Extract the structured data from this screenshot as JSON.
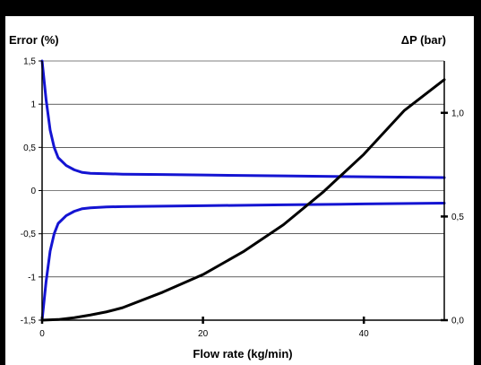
{
  "chart_data": {
    "type": "line",
    "title": "",
    "xlabel": "Flow rate (kg/min)",
    "ylabel_left": "Error (%)",
    "ylabel_right": "ΔP (bar)",
    "xlim": [
      0,
      50
    ],
    "ylim_left": [
      -1.5,
      1.5
    ],
    "ylim_right": [
      0.0,
      1.25
    ],
    "x_ticks": [
      "0",
      "20",
      "40"
    ],
    "x_tick_values": [
      0,
      20,
      40
    ],
    "y_left_ticks": [
      "1,5",
      "1",
      "0,5",
      "0",
      "-0,5",
      "-1",
      "-1,5"
    ],
    "y_left_tick_values": [
      1.5,
      1,
      0.5,
      0,
      -0.5,
      -1,
      -1.5
    ],
    "y_right_ticks": [
      "1,0",
      "0,5",
      "0,0"
    ],
    "y_right_tick_values": [
      1.0,
      0.5,
      0.0
    ],
    "grid": "horizontal",
    "series": [
      {
        "axis": "left",
        "color": "#1414d2",
        "x": [
          0,
          0.5,
          1,
          1.5,
          2,
          3,
          4,
          5,
          6,
          8,
          10,
          15,
          20,
          30,
          40,
          50
        ],
        "values": [
          1.5,
          1.05,
          0.7,
          0.5,
          0.38,
          0.29,
          0.24,
          0.21,
          0.2,
          0.195,
          0.19,
          0.185,
          0.18,
          0.17,
          0.16,
          0.15
        ]
      },
      {
        "axis": "left",
        "color": "#1414d2",
        "x": [
          0,
          0.5,
          1,
          1.5,
          2,
          3,
          4,
          5,
          6,
          8,
          10,
          15,
          20,
          30,
          40,
          50
        ],
        "values": [
          -1.5,
          -1.05,
          -0.7,
          -0.5,
          -0.38,
          -0.29,
          -0.24,
          -0.21,
          -0.2,
          -0.19,
          -0.185,
          -0.18,
          -0.175,
          -0.165,
          -0.155,
          -0.145
        ]
      },
      {
        "axis": "right",
        "color": "#000000",
        "x": [
          0,
          2,
          4,
          6,
          8,
          10,
          15,
          20,
          25,
          30,
          35,
          40,
          45,
          50
        ],
        "values": [
          0.0,
          0.003,
          0.012,
          0.025,
          0.04,
          0.06,
          0.135,
          0.22,
          0.33,
          0.46,
          0.62,
          0.8,
          1.01,
          1.16
        ]
      }
    ]
  }
}
